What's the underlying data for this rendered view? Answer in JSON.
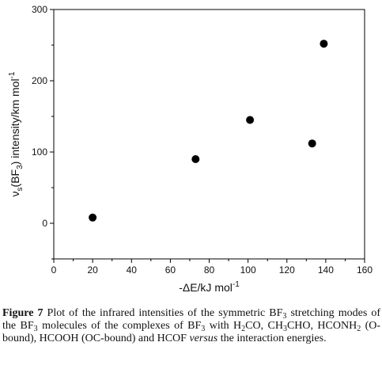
{
  "chart_data": {
    "type": "scatter",
    "x": [
      20,
      73,
      101,
      133,
      139
    ],
    "y": [
      8,
      90,
      145,
      112,
      252
    ],
    "xlim": [
      0,
      160
    ],
    "ylim": [
      -50,
      300
    ],
    "xticks": [
      0,
      20,
      40,
      60,
      80,
      100,
      120,
      140,
      160
    ],
    "yticks": [
      0,
      100,
      200,
      300
    ],
    "xlabel": "-ΔE/kJ mol",
    "xlabel_sup": "-1",
    "ylabel": {
      "nu": "ν",
      "nu_sub": "s",
      "mid1": "(BF",
      "bf_sub": "3",
      "mid2": ") intensity/km mol",
      "sup": "-1"
    },
    "grid": false,
    "marker_color": "#000000"
  },
  "caption": {
    "label": "Figure 7",
    "p1": "Plot of the infrared intensities of the symmetric BF",
    "s1": "3",
    "p2": "stretching modes of the BF",
    "s2": "3",
    "p3": "molecules of the complexes of BF",
    "s3": "3",
    "p4": "with H",
    "s4": "2",
    "p5": "CO, CH",
    "s5": "3",
    "p6": "CHO, HCONH",
    "s6": "2",
    "p7": "(O-bound), HCOOH (OC-bound) and HCOF",
    "versus": "versus",
    "p8": "the interaction energies."
  }
}
